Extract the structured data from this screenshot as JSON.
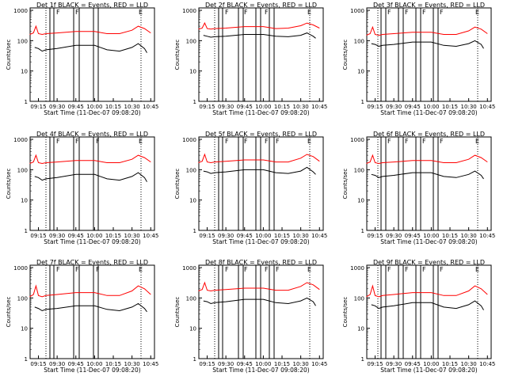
{
  "colors": {
    "events": "#000000",
    "lld": "#ff0000",
    "axis": "#000000",
    "background": "#ffffff"
  },
  "chart_data": [
    {
      "type": "line",
      "title": "Det 1f BLACK = Events, RED = LLD",
      "xlabel": "Start Time (11-Dec-07 09:08:20)",
      "ylabel": "Counts/sec",
      "x_tick_labels": [
        "09:15",
        "09:30",
        "09:45",
        "10:00",
        "10:15",
        "10:30",
        "10:45"
      ],
      "y_tick_labels": [
        "1",
        "10",
        "100",
        "1000"
      ],
      "y_scale": "log",
      "ylim": [
        1,
        1200
      ],
      "xlim": [
        "09:08:20",
        "10:48:00"
      ],
      "grid": false,
      "markers": [
        "F",
        "F",
        "E"
      ],
      "series": [
        {
          "name": "BLACK = Events",
          "color": "#000000",
          "x": [
            "09:12",
            "09:15",
            "09:18",
            "09:21",
            "09:30",
            "09:45",
            "10:00",
            "10:10",
            "10:20",
            "10:30",
            "10:35",
            "10:40",
            "10:42"
          ],
          "values": [
            60,
            55,
            45,
            50,
            55,
            70,
            70,
            50,
            45,
            60,
            80,
            55,
            40
          ]
        },
        {
          "name": "RED = LLD",
          "color": "#ff0000",
          "x": [
            "09:08",
            "09:11",
            "09:13",
            "09:15",
            "09:18",
            "09:21",
            "09:30",
            "09:45",
            "10:00",
            "10:10",
            "10:20",
            "10:30",
            "10:35",
            "10:40",
            "10:45"
          ],
          "values": [
            160,
            180,
            300,
            170,
            160,
            170,
            180,
            200,
            200,
            170,
            170,
            220,
            300,
            250,
            180
          ]
        }
      ]
    },
    {
      "type": "line",
      "title": "Det 2f BLACK = Events, RED = LLD",
      "xlabel": "Start Time (11-Dec-07 09:08:20)",
      "ylabel": "Counts/sec",
      "x_tick_labels": [
        "09:15",
        "09:30",
        "09:45",
        "10:00",
        "10:15",
        "10:30",
        "10:45"
      ],
      "y_tick_labels": [
        "1",
        "10",
        "100",
        "1000"
      ],
      "y_scale": "log",
      "ylim": [
        1,
        1200
      ],
      "xlim": [
        "09:08:20",
        "10:48:00"
      ],
      "grid": false,
      "markers": [
        "F",
        "F",
        "F",
        "E"
      ],
      "series": [
        {
          "name": "BLACK = Events",
          "color": "#000000",
          "x": [
            "09:12",
            "09:15",
            "09:18",
            "09:21",
            "09:30",
            "09:45",
            "10:00",
            "10:10",
            "10:20",
            "10:30",
            "10:35",
            "10:40",
            "10:42"
          ],
          "values": [
            150,
            140,
            130,
            135,
            140,
            160,
            160,
            140,
            135,
            150,
            180,
            140,
            120
          ]
        },
        {
          "name": "RED = LLD",
          "color": "#ff0000",
          "x": [
            "09:08",
            "09:11",
            "09:13",
            "09:15",
            "09:18",
            "09:21",
            "09:30",
            "09:45",
            "10:00",
            "10:10",
            "10:20",
            "10:30",
            "10:35",
            "10:40",
            "10:45"
          ],
          "values": [
            240,
            260,
            380,
            250,
            240,
            250,
            260,
            290,
            290,
            250,
            260,
            310,
            380,
            330,
            260
          ]
        }
      ]
    },
    {
      "type": "line",
      "title": "Det 3f BLACK = Events, RED = LLD",
      "xlabel": "Start Time (11-Dec-07 09:08:20)",
      "ylabel": "Counts/sec",
      "x_tick_labels": [
        "09:15",
        "09:30",
        "09:45",
        "10:00",
        "10:15",
        "10:30",
        "10:45"
      ],
      "y_tick_labels": [
        "1",
        "10",
        "100",
        "1000"
      ],
      "y_scale": "log",
      "ylim": [
        1,
        1200
      ],
      "xlim": [
        "09:08:20",
        "10:48:00"
      ],
      "grid": false,
      "markers": [
        "F",
        "F",
        "F",
        "F",
        "E"
      ],
      "series": [
        {
          "name": "BLACK = Events",
          "color": "#000000",
          "x": [
            "09:12",
            "09:15",
            "09:18",
            "09:21",
            "09:30",
            "09:45",
            "10:00",
            "10:10",
            "10:20",
            "10:30",
            "10:35",
            "10:40",
            "10:42"
          ],
          "values": [
            80,
            75,
            65,
            70,
            75,
            90,
            90,
            70,
            65,
            80,
            100,
            75,
            55
          ]
        },
        {
          "name": "RED = LLD",
          "color": "#ff0000",
          "x": [
            "09:08",
            "09:11",
            "09:13",
            "09:15",
            "09:18",
            "09:21",
            "09:30",
            "09:45",
            "10:00",
            "10:10",
            "10:20",
            "10:30",
            "10:35",
            "10:40",
            "10:45"
          ],
          "values": [
            150,
            170,
            280,
            160,
            150,
            160,
            170,
            190,
            190,
            160,
            160,
            210,
            280,
            240,
            170
          ]
        }
      ]
    },
    {
      "type": "line",
      "title": "Det 4f BLACK = Events, RED = LLD",
      "xlabel": "Start Time (11-Dec-07 09:08:20)",
      "ylabel": "Counts/sec",
      "x_tick_labels": [
        "09:15",
        "09:30",
        "09:45",
        "10:00",
        "10:15",
        "10:30",
        "10:45"
      ],
      "y_tick_labels": [
        "1",
        "10",
        "100",
        "1000"
      ],
      "y_scale": "log",
      "ylim": [
        1,
        1200
      ],
      "xlim": [
        "09:08:20",
        "10:48:00"
      ],
      "grid": false,
      "markers": [
        "F",
        "F",
        "F",
        "E"
      ],
      "series": [
        {
          "name": "BLACK = Events",
          "color": "#000000",
          "x": [
            "09:12",
            "09:15",
            "09:18",
            "09:21",
            "09:30",
            "09:45",
            "10:00",
            "10:10",
            "10:20",
            "10:30",
            "10:35",
            "10:40",
            "10:42"
          ],
          "values": [
            60,
            55,
            45,
            50,
            55,
            70,
            70,
            50,
            45,
            60,
            80,
            55,
            40
          ]
        },
        {
          "name": "RED = LLD",
          "color": "#ff0000",
          "x": [
            "09:08",
            "09:11",
            "09:13",
            "09:15",
            "09:18",
            "09:21",
            "09:30",
            "09:45",
            "10:00",
            "10:10",
            "10:20",
            "10:30",
            "10:35",
            "10:40",
            "10:45"
          ],
          "values": [
            160,
            180,
            300,
            170,
            160,
            170,
            180,
            200,
            200,
            170,
            170,
            220,
            300,
            250,
            180
          ]
        }
      ]
    },
    {
      "type": "line",
      "title": "Det 5f BLACK = Events, RED = LLD",
      "xlabel": "Start Time (11-Dec-07 09:08:20)",
      "ylabel": "Counts/sec",
      "x_tick_labels": [
        "09:15",
        "09:30",
        "09:45",
        "10:00",
        "10:15",
        "10:30",
        "10:45"
      ],
      "y_tick_labels": [
        "1",
        "10",
        "100",
        "1000"
      ],
      "y_scale": "log",
      "ylim": [
        1,
        1200
      ],
      "xlim": [
        "09:08:20",
        "10:48:00"
      ],
      "grid": false,
      "markers": [
        "F",
        "F",
        "F",
        "F",
        "E"
      ],
      "series": [
        {
          "name": "BLACK = Events",
          "color": "#000000",
          "x": [
            "09:12",
            "09:15",
            "09:18",
            "09:21",
            "09:30",
            "09:45",
            "10:00",
            "10:10",
            "10:20",
            "10:30",
            "10:35",
            "10:40",
            "10:42"
          ],
          "values": [
            90,
            85,
            75,
            80,
            85,
            100,
            100,
            80,
            75,
            90,
            120,
            85,
            70
          ]
        },
        {
          "name": "RED = LLD",
          "color": "#ff0000",
          "x": [
            "09:08",
            "09:11",
            "09:13",
            "09:15",
            "09:18",
            "09:21",
            "09:30",
            "09:45",
            "10:00",
            "10:10",
            "10:20",
            "10:30",
            "10:35",
            "10:40",
            "10:45"
          ],
          "values": [
            170,
            190,
            320,
            180,
            170,
            180,
            190,
            210,
            210,
            180,
            180,
            240,
            320,
            270,
            190
          ]
        }
      ]
    },
    {
      "type": "line",
      "title": "Det 6f BLACK = Events, RED = LLD",
      "xlabel": "Start Time (11-Dec-07 09:08:20)",
      "ylabel": "Counts/sec",
      "x_tick_labels": [
        "09:15",
        "09:30",
        "09:45",
        "10:00",
        "10:15",
        "10:30",
        "10:45"
      ],
      "y_tick_labels": [
        "1",
        "10",
        "100",
        "1000"
      ],
      "y_scale": "log",
      "ylim": [
        1,
        1200
      ],
      "xlim": [
        "09:08:20",
        "10:48:00"
      ],
      "grid": false,
      "markers": [
        "F",
        "F",
        "F",
        "F",
        "E"
      ],
      "series": [
        {
          "name": "BLACK = Events",
          "color": "#000000",
          "x": [
            "09:12",
            "09:15",
            "09:18",
            "09:21",
            "09:30",
            "09:45",
            "10:00",
            "10:10",
            "10:20",
            "10:30",
            "10:35",
            "10:40",
            "10:42"
          ],
          "values": [
            70,
            65,
            55,
            60,
            65,
            80,
            80,
            60,
            55,
            70,
            90,
            65,
            50
          ]
        },
        {
          "name": "RED = LLD",
          "color": "#ff0000",
          "x": [
            "09:08",
            "09:11",
            "09:13",
            "09:15",
            "09:18",
            "09:21",
            "09:30",
            "09:45",
            "10:00",
            "10:10",
            "10:20",
            "10:30",
            "10:35",
            "10:40",
            "10:45"
          ],
          "values": [
            160,
            180,
            300,
            170,
            160,
            170,
            180,
            200,
            200,
            170,
            170,
            220,
            300,
            250,
            180
          ]
        }
      ]
    },
    {
      "type": "line",
      "title": "Det 7f BLACK = Events, RED = LLD",
      "xlabel": "Start Time (11-Dec-07 09:08:20)",
      "ylabel": "Counts/sec",
      "x_tick_labels": [
        "09:15",
        "09:30",
        "09:45",
        "10:00",
        "10:15",
        "10:30",
        "10:45"
      ],
      "y_tick_labels": [
        "1",
        "10",
        "100",
        "1000"
      ],
      "y_scale": "log",
      "ylim": [
        1,
        1200
      ],
      "xlim": [
        "09:08:20",
        "10:48:00"
      ],
      "grid": false,
      "markers": [
        "F",
        "F",
        "F",
        "E"
      ],
      "series": [
        {
          "name": "BLACK = Events",
          "color": "#000000",
          "x": [
            "09:12",
            "09:15",
            "09:18",
            "09:21",
            "09:30",
            "09:45",
            "10:00",
            "10:10",
            "10:20",
            "10:30",
            "10:35",
            "10:40",
            "10:42"
          ],
          "values": [
            50,
            45,
            38,
            42,
            45,
            55,
            55,
            42,
            38,
            50,
            65,
            45,
            35
          ]
        },
        {
          "name": "RED = LLD",
          "color": "#ff0000",
          "x": [
            "09:08",
            "09:11",
            "09:13",
            "09:15",
            "09:18",
            "09:21",
            "09:30",
            "09:45",
            "10:00",
            "10:10",
            "10:20",
            "10:30",
            "10:35",
            "10:40",
            "10:45"
          ],
          "values": [
            110,
            130,
            250,
            120,
            110,
            120,
            130,
            150,
            150,
            120,
            120,
            170,
            250,
            200,
            130
          ]
        }
      ]
    },
    {
      "type": "line",
      "title": "Det 8f BLACK = Events, RED = LLD",
      "xlabel": "Start Time (11-Dec-07 09:08:20)",
      "ylabel": "Counts/sec",
      "x_tick_labels": [
        "09:15",
        "09:30",
        "09:45",
        "10:00",
        "10:15",
        "10:30",
        "10:45"
      ],
      "y_tick_labels": [
        "1",
        "10",
        "100",
        "1000"
      ],
      "y_scale": "log",
      "ylim": [
        1,
        1200
      ],
      "xlim": [
        "09:08:20",
        "10:48:00"
      ],
      "grid": false,
      "markers": [
        "F",
        "F",
        "F",
        "F",
        "E"
      ],
      "series": [
        {
          "name": "BLACK = Events",
          "color": "#000000",
          "x": [
            "09:12",
            "09:15",
            "09:18",
            "09:21",
            "09:30",
            "09:45",
            "10:00",
            "10:10",
            "10:20",
            "10:30",
            "10:35",
            "10:40",
            "10:42"
          ],
          "values": [
            80,
            75,
            65,
            70,
            75,
            90,
            90,
            70,
            65,
            80,
            100,
            75,
            55
          ]
        },
        {
          "name": "RED = LLD",
          "color": "#ff0000",
          "x": [
            "09:08",
            "09:11",
            "09:13",
            "09:15",
            "09:18",
            "09:21",
            "09:30",
            "09:45",
            "10:00",
            "10:10",
            "10:20",
            "10:30",
            "10:35",
            "10:40",
            "10:45"
          ],
          "values": [
            170,
            190,
            320,
            180,
            170,
            180,
            190,
            210,
            210,
            180,
            180,
            240,
            320,
            270,
            190
          ]
        }
      ]
    },
    {
      "type": "line",
      "title": "Det 9f BLACK = Events, RED = LLD",
      "xlabel": "Start Time (11-Dec-07 09:08:20)",
      "ylabel": "Counts/sec",
      "x_tick_labels": [
        "09:15",
        "09:30",
        "09:45",
        "10:00",
        "10:15",
        "10:30",
        "10:45"
      ],
      "y_tick_labels": [
        "1",
        "10",
        "100",
        "1000"
      ],
      "y_scale": "log",
      "ylim": [
        1,
        1200
      ],
      "xlim": [
        "09:08:20",
        "10:48:00"
      ],
      "grid": false,
      "markers": [
        "F",
        "F",
        "F",
        "F",
        "E"
      ],
      "series": [
        {
          "name": "BLACK = Events",
          "color": "#000000",
          "x": [
            "09:12",
            "09:15",
            "09:18",
            "09:21",
            "09:30",
            "09:45",
            "10:00",
            "10:10",
            "10:20",
            "10:30",
            "10:35",
            "10:40",
            "10:42"
          ],
          "values": [
            60,
            55,
            45,
            50,
            55,
            70,
            70,
            50,
            45,
            60,
            80,
            55,
            40
          ]
        },
        {
          "name": "RED = LLD",
          "color": "#ff0000",
          "x": [
            "09:08",
            "09:11",
            "09:13",
            "09:15",
            "09:18",
            "09:21",
            "09:30",
            "09:45",
            "10:00",
            "10:10",
            "10:20",
            "10:30",
            "10:35",
            "10:40",
            "10:45"
          ],
          "values": [
            110,
            130,
            250,
            120,
            110,
            120,
            130,
            150,
            150,
            120,
            120,
            170,
            250,
            200,
            130
          ]
        }
      ]
    }
  ]
}
